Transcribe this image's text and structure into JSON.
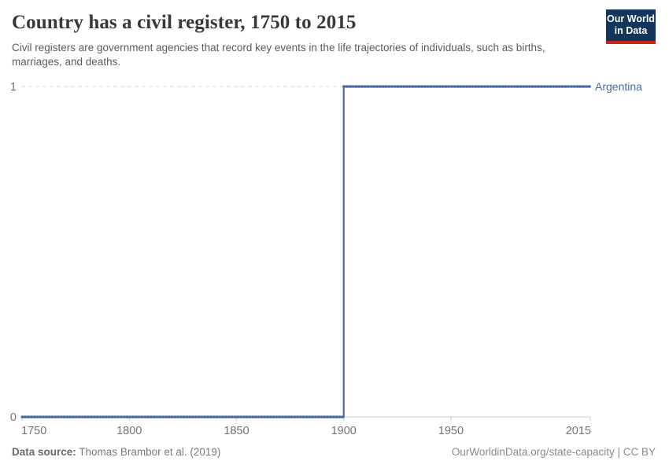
{
  "header": {
    "title": "Country has a civil register, 1750 to 2015",
    "subtitle": "Civil registers are government agencies that record key events in the life trajectories of individuals, such as births, marriages, and deaths.",
    "logo": {
      "line1": "Our World",
      "line2": "in Data",
      "bg_color": "#12365C",
      "accent_color": "#CE261F"
    }
  },
  "chart_data": {
    "type": "line",
    "style": "step",
    "title": "Country has a civil register, 1750 to 2015",
    "xlabel": "",
    "ylabel": "",
    "xlim": [
      1750,
      2015
    ],
    "ylim": [
      0,
      1
    ],
    "grid": "dashed horizontal gridline at y=1",
    "legend_position": "label at end of line",
    "x_ticks": [
      {
        "label": "1750",
        "year": 1750
      },
      {
        "label": "1800",
        "year": 1800
      },
      {
        "label": "1850",
        "year": 1850
      },
      {
        "label": "1900",
        "year": 1900
      },
      {
        "label": "1950",
        "year": 1950
      },
      {
        "label": "2015",
        "year": 2015
      }
    ],
    "y_ticks": [
      {
        "label": "0",
        "value": 0
      },
      {
        "label": "1",
        "value": 1
      }
    ],
    "series": [
      {
        "name": "Argentina",
        "color": "#4C6A9C",
        "points": [
          {
            "year": 1750,
            "value": 0
          },
          {
            "year": 1900,
            "value": 0
          },
          {
            "year": 1900,
            "value": 1
          },
          {
            "year": 2015,
            "value": 1
          }
        ]
      }
    ]
  },
  "footer": {
    "datasource_label": "Data source:",
    "datasource_value": "Thomas Brambor et al. (2019)",
    "attribution": "OurWorldinData.org/state-capacity | CC BY"
  }
}
